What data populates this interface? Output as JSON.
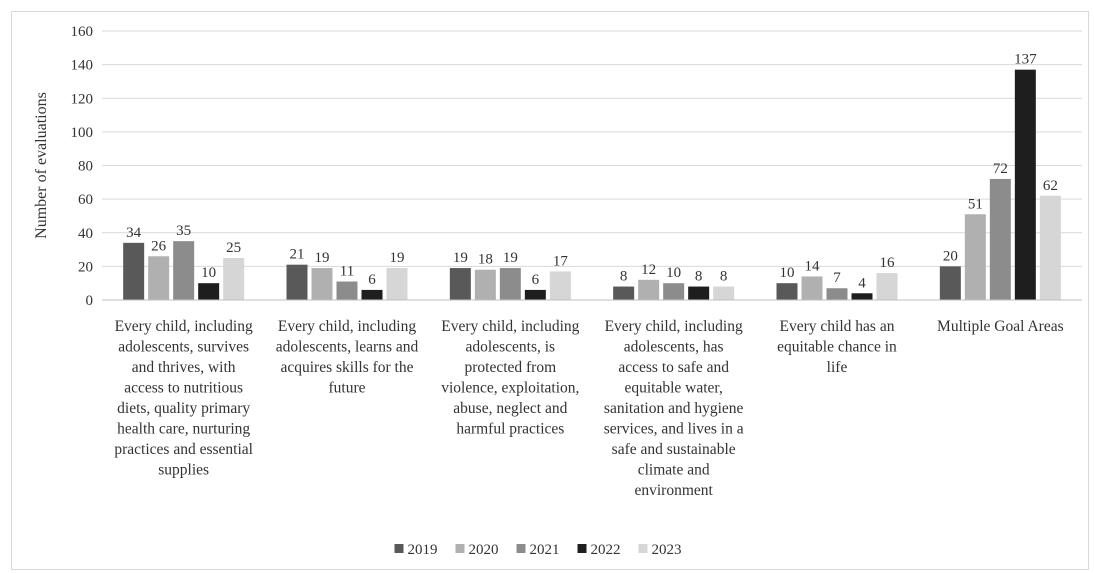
{
  "chart_data": {
    "type": "bar",
    "ylabel": "Number of evaluations",
    "xlabel": "",
    "ylim": [
      0,
      160
    ],
    "yticks": [
      0,
      20,
      40,
      60,
      80,
      100,
      120,
      140,
      160
    ],
    "grid": true,
    "legend_position": "bottom",
    "categories": [
      [
        "Every child, including",
        "adolescents, survives",
        "and thrives, with",
        "access to nutritious",
        "diets, quality primary",
        "health care, nurturing",
        "practices and essential",
        "supplies"
      ],
      [
        "Every child, including",
        "adolescents, learns and",
        "acquires skills for the",
        "future"
      ],
      [
        "Every child, including",
        "adolescents, is",
        "protected from",
        "violence, exploitation,",
        "abuse, neglect and",
        "harmful practices"
      ],
      [
        "Every child, including",
        "adolescents, has",
        "access to safe and",
        "equitable water,",
        "sanitation and hygiene",
        "services, and lives in a",
        "safe and sustainable",
        "climate and",
        "environment"
      ],
      [
        "Every child has an",
        "equitable chance in",
        "life"
      ],
      [
        "Multiple Goal Areas"
      ]
    ],
    "series": [
      {
        "name": "2019",
        "color": "#595959",
        "values": [
          34,
          21,
          19,
          8,
          10,
          20
        ]
      },
      {
        "name": "2020",
        "color": "#b0b0b0",
        "values": [
          26,
          19,
          18,
          12,
          14,
          51
        ]
      },
      {
        "name": "2021",
        "color": "#8c8c8c",
        "values": [
          35,
          11,
          19,
          10,
          7,
          72
        ]
      },
      {
        "name": "2022",
        "color": "#1e1e1e",
        "values": [
          10,
          6,
          6,
          8,
          4,
          137
        ]
      },
      {
        "name": "2023",
        "color": "#d6d6d6",
        "values": [
          25,
          19,
          17,
          8,
          16,
          62
        ]
      }
    ]
  },
  "colors": {
    "gridline": "#d9d9d9",
    "axis": "#bfbfbf",
    "text": "#333333"
  }
}
